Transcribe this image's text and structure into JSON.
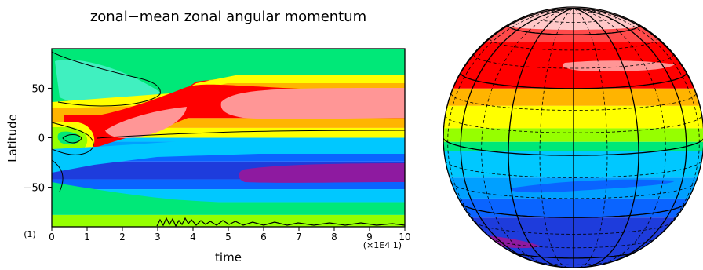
{
  "chart_data": [
    {
      "type": "heatmap",
      "title": "zonal−mean zonal angular momentum",
      "xlabel": "time",
      "ylabel": "Latitude",
      "x_ticks": [
        "0",
        "1",
        "2",
        "3",
        "4",
        "5",
        "6",
        "7",
        "8",
        "9",
        "10"
      ],
      "y_ticks": [
        "50",
        "0",
        "−50"
      ],
      "y_tick_values": [
        50,
        0,
        -50
      ],
      "xlim": [
        0,
        10
      ],
      "ylim": [
        -90,
        90
      ],
      "x_scale_note": "(×1E4 1)",
      "corner_note": "(1)",
      "grid": false,
      "colors": [
        "#8e1aa0",
        "#1e3cdc",
        "#0a64ff",
        "#00a0ff",
        "#00c8ff",
        "#00e878",
        "#96ff00",
        "#ffff00",
        "#ffb400",
        "#ff0000",
        "#ff9696"
      ],
      "bands": [
        {
          "lat": [
            -90,
            -78
          ],
          "color": "#96ff00"
        },
        {
          "lat": [
            -78,
            -65
          ],
          "color": "#00e878"
        },
        {
          "lat": [
            -65,
            -52
          ],
          "color": "#00c8ff"
        },
        {
          "lat": [
            -52,
            -42
          ],
          "color": "#0a64ff"
        },
        {
          "lat": [
            -42,
            -24
          ],
          "color": "#1e3cdc"
        },
        {
          "lat": [
            -24,
            -12
          ],
          "color": "#0a64ff"
        },
        {
          "lat": [
            -12,
            -4
          ],
          "color": "#00a0ff"
        },
        {
          "lat": [
            -4,
            0
          ],
          "color": "#00c8ff"
        },
        {
          "lat": [
            0,
            10
          ],
          "color": "#ffff00"
        },
        {
          "lat": [
            10,
            20
          ],
          "color": "#ffb400"
        },
        {
          "lat": [
            20,
            58
          ],
          "color": "#ff0000"
        },
        {
          "lat": [
            58,
            66
          ],
          "color": "#ffb400"
        },
        {
          "lat": [
            66,
            72
          ],
          "color": "#ffff00"
        },
        {
          "lat": [
            72,
            90
          ],
          "color": "#96ff00"
        }
      ]
    },
    {
      "type": "heatmap",
      "projection": "orthographic-globe",
      "colors": [
        "#ffc8c8",
        "#ff4a4a",
        "#ff0000",
        "#ffb400",
        "#ffff00",
        "#96ff00",
        "#00e878",
        "#00c8ff",
        "#00a0ff",
        "#0a64ff",
        "#1e3cdc",
        "#8e1aa0"
      ],
      "bands": [
        {
          "lat": [
            70,
            90
          ],
          "color": "#ffc8c8"
        },
        {
          "lat": [
            55,
            70
          ],
          "color": "#ff4a4a"
        },
        {
          "lat": [
            30,
            55
          ],
          "color": "#ff0000"
        },
        {
          "lat": [
            22,
            30
          ],
          "color": "#ffb400"
        },
        {
          "lat": [
            12,
            22
          ],
          "color": "#ffff00"
        },
        {
          "lat": [
            6,
            12
          ],
          "color": "#96ff00"
        },
        {
          "lat": [
            2,
            6
          ],
          "color": "#00e878"
        },
        {
          "lat": [
            -10,
            2
          ],
          "color": "#00c8ff"
        },
        {
          "lat": [
            -20,
            -10
          ],
          "color": "#00a0ff"
        },
        {
          "lat": [
            -30,
            -20
          ],
          "color": "#0a64ff"
        },
        {
          "lat": [
            -90,
            -30
          ],
          "color": "#1e3cdc"
        }
      ]
    }
  ]
}
